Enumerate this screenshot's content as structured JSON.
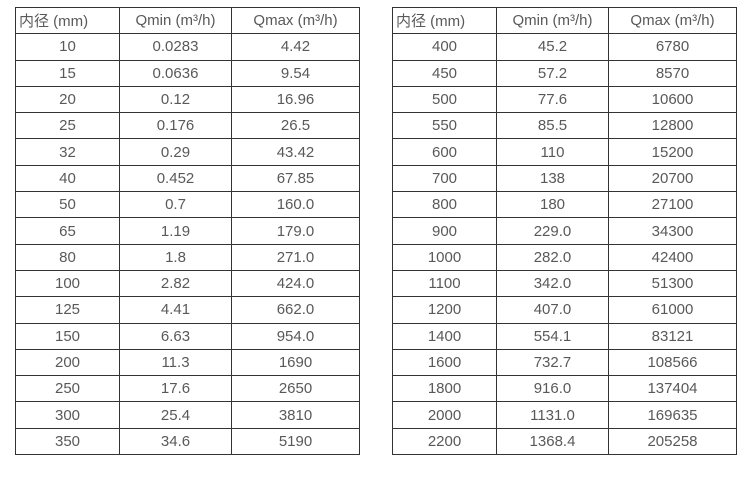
{
  "colors": {
    "border": "#333333",
    "text": "#595959",
    "background": "#ffffff"
  },
  "tables": [
    {
      "name": "flow-rate-table-small-diameters",
      "headers": [
        "内径 (mm)",
        "Qmin (m³/h)",
        "Qmax (m³/h)"
      ],
      "rows": [
        [
          "10",
          "0.0283",
          "4.42"
        ],
        [
          "15",
          "0.0636",
          "9.54"
        ],
        [
          "20",
          "0.12",
          "16.96"
        ],
        [
          "25",
          "0.176",
          "26.5"
        ],
        [
          "32",
          "0.29",
          "43.42"
        ],
        [
          "40",
          "0.452",
          "67.85"
        ],
        [
          "50",
          "0.7",
          "160.0"
        ],
        [
          "65",
          "1.19",
          "179.0"
        ],
        [
          "80",
          "1.8",
          "271.0"
        ],
        [
          "100",
          "2.82",
          "424.0"
        ],
        [
          "125",
          "4.41",
          "662.0"
        ],
        [
          "150",
          "6.63",
          "954.0"
        ],
        [
          "200",
          "11.3",
          "1690"
        ],
        [
          "250",
          "17.6",
          "2650"
        ],
        [
          "300",
          "25.4",
          "3810"
        ],
        [
          "350",
          "34.6",
          "5190"
        ]
      ]
    },
    {
      "name": "flow-rate-table-large-diameters",
      "headers": [
        "内径 (mm)",
        "Qmin (m³/h)",
        "Qmax (m³/h)"
      ],
      "rows": [
        [
          "400",
          "45.2",
          "6780"
        ],
        [
          "450",
          "57.2",
          "8570"
        ],
        [
          "500",
          "77.6",
          "10600"
        ],
        [
          "550",
          "85.5",
          "12800"
        ],
        [
          "600",
          "110",
          "15200"
        ],
        [
          "700",
          "138",
          "20700"
        ],
        [
          "800",
          "180",
          "27100"
        ],
        [
          "900",
          "229.0",
          "34300"
        ],
        [
          "1000",
          "282.0",
          "42400"
        ],
        [
          "1100",
          "342.0",
          "51300"
        ],
        [
          "1200",
          "407.0",
          "61000"
        ],
        [
          "1400",
          "554.1",
          "83121"
        ],
        [
          "1600",
          "732.7",
          "108566"
        ],
        [
          "1800",
          "916.0",
          "137404"
        ],
        [
          "2000",
          "1131.0",
          "169635"
        ],
        [
          "2200",
          "1368.4",
          "205258"
        ]
      ]
    }
  ]
}
